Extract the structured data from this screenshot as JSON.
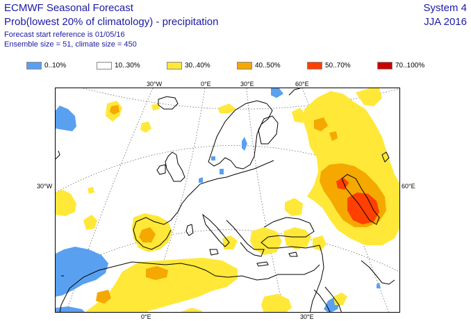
{
  "header": {
    "line1": "ECMWF Seasonal Forecast",
    "line2": "Prob(lowest 20% of climatology) - precipitation",
    "line3": "Forecast start reference is 01/05/16",
    "line4": "Ensemble size = 51, climate size = 450",
    "system": "System 4",
    "season": "JJA 2016"
  },
  "legend": [
    {
      "label": "0..10%",
      "color": "#5aa0f0"
    },
    {
      "label": "10..30%",
      "color": "#ffffff"
    },
    {
      "label": "30..40%",
      "color": "#ffe838"
    },
    {
      "label": "40..50%",
      "color": "#f5a800"
    },
    {
      "label": "50..70%",
      "color": "#ff4000"
    },
    {
      "label": "70..100%",
      "color": "#c80000"
    }
  ],
  "axis_labels": {
    "top": [
      "30°W",
      "0°E",
      "30°E",
      "60°E"
    ],
    "bottom": [
      "0°E",
      "30°E"
    ],
    "left": "30°W",
    "right": "60°E"
  }
}
